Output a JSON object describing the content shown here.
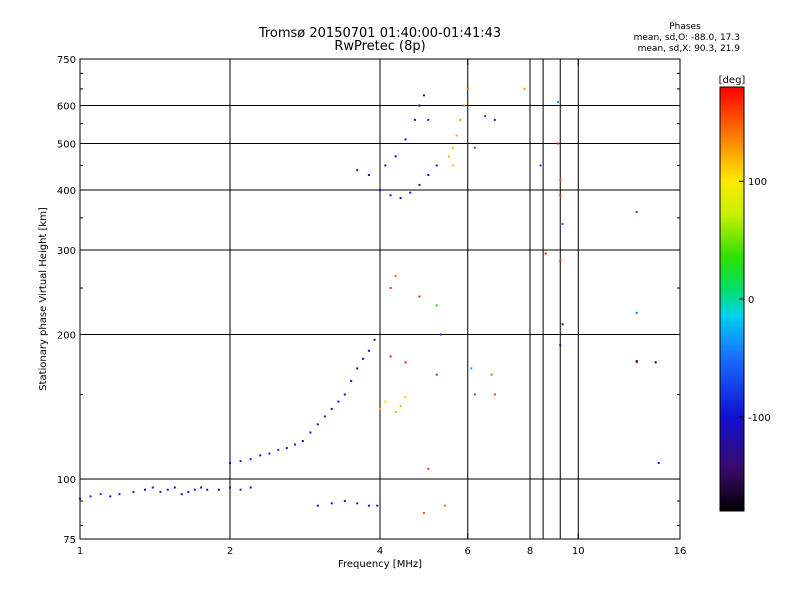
{
  "header": {
    "title": "Tromsø 20150701 01:40:00-01:41:43",
    "subtitle": "RwPretec (8p)",
    "stats_title": "Phases",
    "stats_o": "mean, sd,O: -88.0, 17.3",
    "stats_x": "mean, sd,X:  90.3, 21.9"
  },
  "chart_data": {
    "type": "scatter",
    "title": "Tromsø 20150701 01:40:00-01:41:43",
    "subtitle": "RwPretec (8p)",
    "xlabel": "Frequency [MHz]",
    "ylabel": "Stationary phase Virtual Height [km]",
    "xscale": "log",
    "yscale": "log",
    "xlim": [
      1,
      16
    ],
    "ylim": [
      75,
      750
    ],
    "grid": true,
    "xticks": [
      1,
      2,
      4,
      6,
      8,
      10,
      16
    ],
    "xtick_labels": [
      "1",
      "2",
      "4",
      "6",
      "8",
      "10",
      "16"
    ],
    "yticks": [
      75,
      100,
      200,
      300,
      400,
      500,
      600,
      750
    ],
    "ytick_labels": [
      "75",
      "100",
      "200",
      "300",
      "400",
      "500",
      "600",
      "750"
    ],
    "colorbar": {
      "label": "[deg]",
      "range": [
        -180,
        180
      ],
      "ticks": [
        100,
        0,
        -100
      ],
      "tick_labels": [
        "100",
        "0",
        "-100"
      ]
    },
    "points": [
      [
        1.0,
        91,
        -95
      ],
      [
        1.05,
        92,
        -90
      ],
      [
        1.1,
        93,
        -85
      ],
      [
        1.15,
        92,
        -100
      ],
      [
        1.2,
        93,
        -92
      ],
      [
        1.28,
        94,
        -88
      ],
      [
        1.35,
        95,
        -105
      ],
      [
        1.4,
        96,
        -98
      ],
      [
        1.45,
        94,
        -90
      ],
      [
        1.5,
        95,
        -95
      ],
      [
        1.55,
        96,
        -100
      ],
      [
        1.6,
        93,
        -110
      ],
      [
        1.65,
        94,
        -96
      ],
      [
        1.7,
        95,
        -90
      ],
      [
        1.75,
        96,
        -105
      ],
      [
        1.8,
        95,
        -100
      ],
      [
        1.9,
        95,
        -110
      ],
      [
        2.0,
        96,
        -100
      ],
      [
        2.1,
        95,
        -95
      ],
      [
        2.2,
        96,
        -105
      ],
      [
        2.0,
        108,
        -100
      ],
      [
        2.1,
        109,
        -95
      ],
      [
        2.2,
        110,
        -90
      ],
      [
        2.3,
        112,
        -100
      ],
      [
        2.4,
        113,
        -95
      ],
      [
        2.5,
        115,
        -92
      ],
      [
        2.6,
        116,
        -98
      ],
      [
        2.7,
        118,
        -95
      ],
      [
        2.8,
        120,
        -100
      ],
      [
        2.9,
        125,
        -105
      ],
      [
        3.0,
        130,
        -110
      ],
      [
        3.1,
        135,
        -100
      ],
      [
        3.2,
        140,
        -105
      ],
      [
        3.3,
        145,
        -95
      ],
      [
        3.4,
        150,
        -110
      ],
      [
        3.5,
        160,
        -100
      ],
      [
        3.6,
        170,
        -105
      ],
      [
        3.7,
        178,
        -110
      ],
      [
        3.8,
        185,
        -100
      ],
      [
        3.9,
        195,
        -115
      ],
      [
        3.0,
        88,
        -110
      ],
      [
        3.2,
        89,
        -105
      ],
      [
        3.4,
        90,
        -110
      ],
      [
        3.6,
        89,
        -100
      ],
      [
        3.8,
        88,
        -115
      ],
      [
        3.95,
        88,
        -110
      ],
      [
        4.0,
        140,
        120
      ],
      [
        4.1,
        145,
        110
      ],
      [
        4.3,
        138,
        120
      ],
      [
        4.4,
        142,
        115
      ],
      [
        4.5,
        148,
        110
      ],
      [
        4.2,
        180,
        170
      ],
      [
        4.5,
        175,
        175
      ],
      [
        4.2,
        250,
        165
      ],
      [
        4.3,
        265,
        150
      ],
      [
        4.8,
        240,
        170
      ],
      [
        5.2,
        230,
        30
      ],
      [
        5.3,
        200,
        -90
      ],
      [
        5.2,
        165,
        170
      ],
      [
        6.1,
        170,
        -30
      ],
      [
        6.2,
        150,
        -50
      ],
      [
        6.7,
        165,
        150
      ],
      [
        6.8,
        150,
        160
      ],
      [
        5.4,
        88,
        140
      ],
      [
        4.9,
        85,
        150
      ],
      [
        5.0,
        105,
        160
      ],
      [
        4.0,
        400,
        -100
      ],
      [
        4.2,
        390,
        -95
      ],
      [
        4.4,
        385,
        -105
      ],
      [
        4.6,
        395,
        -100
      ],
      [
        4.8,
        410,
        -110
      ],
      [
        5.0,
        430,
        -100
      ],
      [
        5.2,
        450,
        -95
      ],
      [
        4.1,
        450,
        -110
      ],
      [
        4.3,
        470,
        -100
      ],
      [
        4.5,
        510,
        -105
      ],
      [
        4.7,
        560,
        -100
      ],
      [
        4.8,
        600,
        -110
      ],
      [
        4.9,
        630,
        -105
      ],
      [
        5.0,
        560,
        -95
      ],
      [
        3.6,
        440,
        -100
      ],
      [
        3.8,
        430,
        -105
      ],
      [
        5.5,
        470,
        120
      ],
      [
        5.6,
        490,
        115
      ],
      [
        5.7,
        520,
        120
      ],
      [
        5.8,
        560,
        130
      ],
      [
        5.9,
        600,
        140
      ],
      [
        5.6,
        450,
        110
      ],
      [
        6.0,
        650,
        150
      ],
      [
        6.2,
        490,
        -60
      ],
      [
        6.5,
        570,
        -80
      ],
      [
        6.8,
        560,
        -90
      ],
      [
        7.8,
        650,
        130
      ],
      [
        8.4,
        450,
        -70
      ],
      [
        8.6,
        295,
        170
      ],
      [
        9.1,
        610,
        -50
      ],
      [
        9.1,
        500,
        170
      ],
      [
        9.2,
        420,
        160
      ],
      [
        9.2,
        390,
        170
      ],
      [
        9.3,
        340,
        -60
      ],
      [
        9.2,
        285,
        170
      ],
      [
        9.3,
        210,
        -120
      ],
      [
        9.2,
        190,
        -130
      ],
      [
        13.1,
        360,
        -80
      ],
      [
        13.1,
        222,
        -50
      ],
      [
        13.1,
        175,
        160
      ],
      [
        13.1,
        176,
        -175
      ],
      [
        14.3,
        175,
        -170
      ],
      [
        14.5,
        108,
        -95
      ]
    ]
  }
}
